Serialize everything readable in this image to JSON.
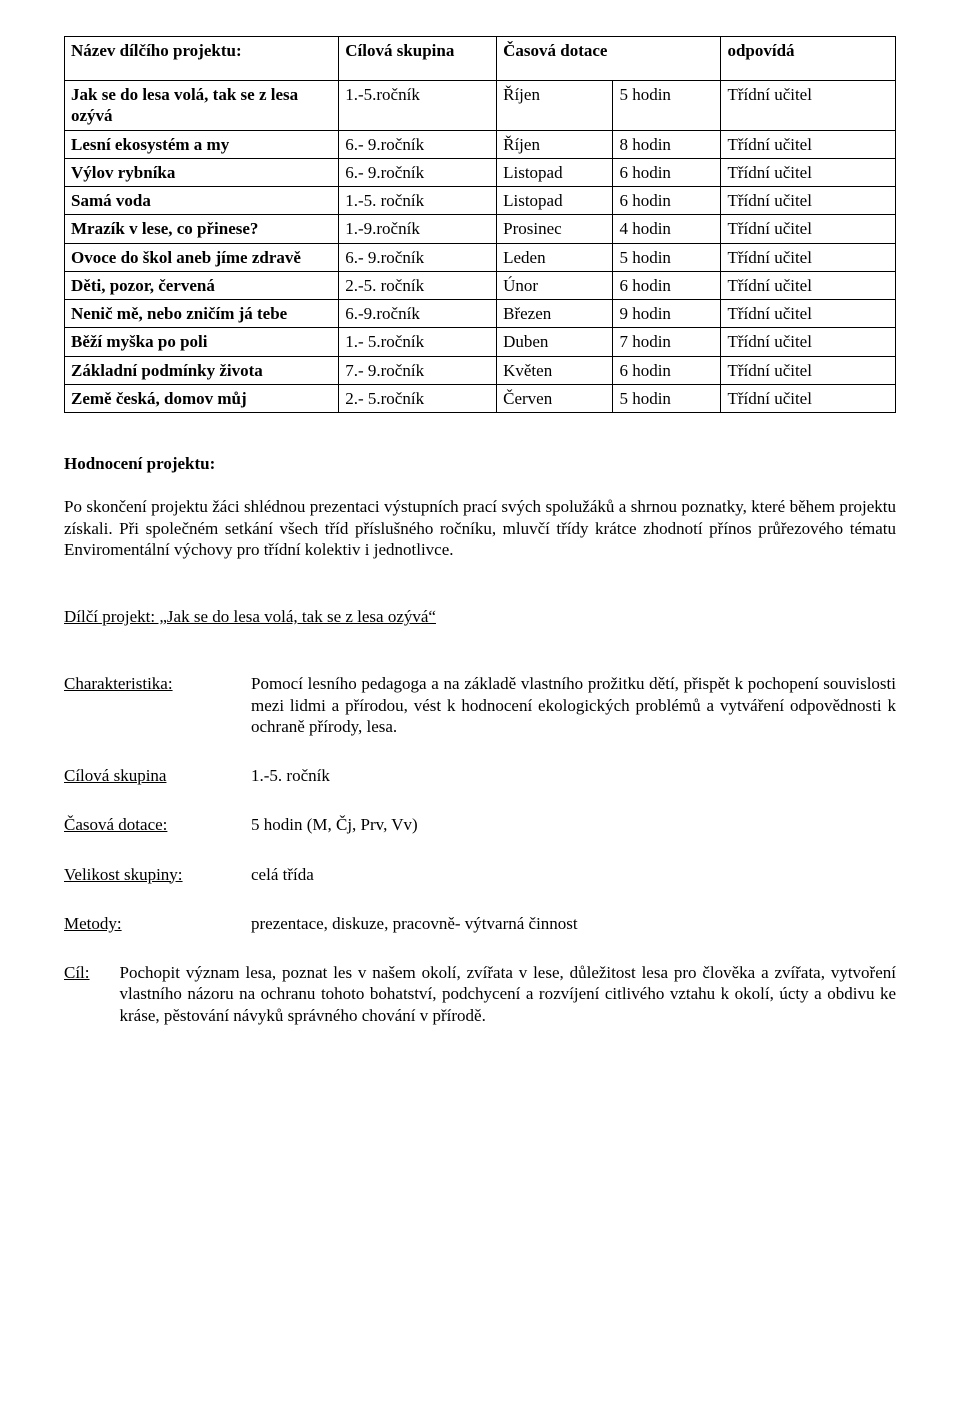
{
  "table": {
    "headers": [
      "Název dílčího projektu:",
      "Cílová skupina",
      "Časová dotace",
      "odpovídá"
    ],
    "rows": [
      {
        "name": "Jak se do lesa volá, tak se z lesa ozývá",
        "group": "1.-5.ročník",
        "month": "Říjen",
        "hours": "5 hodin",
        "resp": "Třídní učitel"
      },
      {
        "name": "Lesní ekosystém a my",
        "group": "6.- 9.ročník",
        "month": "Říjen",
        "hours": "8 hodin",
        "resp": "Třídní učitel"
      },
      {
        "name": "Výlov rybníka",
        "group": "6.- 9.ročník",
        "month": "Listopad",
        "hours": "6 hodin",
        "resp": "Třídní učitel"
      },
      {
        "name": "Samá voda",
        "group": "1.-5. ročník",
        "month": "Listopad",
        "hours": "6 hodin",
        "resp": "Třídní učitel"
      },
      {
        "name": "Mrazík v lese, co přinese?",
        "group": "1.-9.ročník",
        "month": "Prosinec",
        "hours": "4 hodin",
        "resp": "Třídní učitel"
      },
      {
        "name": "Ovoce do škol aneb jíme zdravě",
        "group": "6.- 9.ročník",
        "month": "Leden",
        "hours": "5 hodin",
        "resp": "Třídní učitel"
      },
      {
        "name": "Děti, pozor, červená",
        "group": "2.-5. ročník",
        "month": "Únor",
        "hours": "6 hodin",
        "resp": "Třídní učitel"
      },
      {
        "name": "Nenič mě, nebo zničím já tebe",
        "group": "6.-9.ročník",
        "month": "Březen",
        "hours": "9 hodin",
        "resp": "Třídní učitel"
      },
      {
        "name": "Běží myška po poli",
        "group": "1.- 5.ročník",
        "month": "Duben",
        "hours": "7 hodin",
        "resp": "Třídní učitel"
      },
      {
        "name": "Základní podmínky života",
        "group": "7.- 9.ročník",
        "month": "Květen",
        "hours": "6 hodin",
        "resp": "Třídní učitel"
      },
      {
        "name": "Země česká, domov můj",
        "group": "2.- 5.ročník",
        "month": "Červen",
        "hours": "5 hodin",
        "resp": "Třídní učitel"
      }
    ]
  },
  "evaluation": {
    "heading": "Hodnocení projektu",
    "text": "Po skončení projektu žáci shlédnou prezentaci výstupních prací svých spolužáků a shrnou poznatky, které během projektu získali. Při společném setkání všech tříd příslušného ročníku, mluvčí třídy krátce zhodnotí přínos průřezového tématu Enviromentální výchovy pro třídní kolektiv i jednotlivce."
  },
  "subproject": {
    "title": "Dílčí projekt: „Jak se do lesa volá, tak se z lesa ozývá“",
    "items": {
      "char_label": "Charakteristika:",
      "char_text": "Pomocí lesního pedagoga a na základě vlastního prožitku dětí, přispět k pochopení souvislosti mezi lidmi a přírodou, vést k hodnocení ekologických problémů a vytváření odpovědnosti k ochraně přírody, lesa.",
      "group_label": "Cílová skupina",
      "group_val": "1.-5. ročník",
      "time_label": "Časová dotace:",
      "time_val": "5 hodin (M, Čj, Prv, Vv)",
      "size_label": "Velikost skupiny:",
      "size_val": "celá třída",
      "methods_label": "Metody:",
      "methods_val": "prezentace, diskuze, pracovně- výtvarná činnost",
      "cil_label": "Cíl:",
      "cil_text": "Pochopit význam lesa, poznat les v našem okolí, zvířata v lese, důležitost lesa pro člověka a zvířata, vytvoření vlastního názoru na ochranu tohoto bohatství, podchycení a rozvíjení citlivého vztahu k okolí, úcty a obdivu ke kráse, pěstování návyků správného chování v přírodě."
    }
  }
}
